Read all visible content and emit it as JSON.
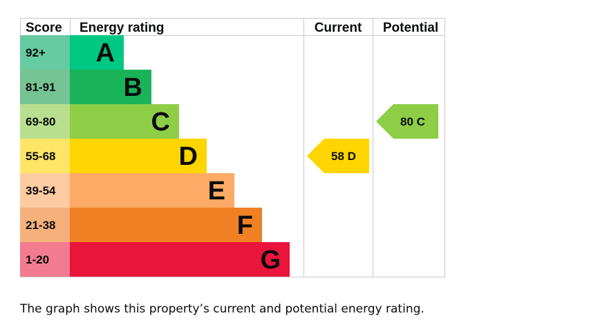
{
  "chart_data": {
    "type": "table",
    "headers": {
      "score": "Score",
      "rating": "Energy rating",
      "current": "Current",
      "potential": "Potential"
    },
    "bands": [
      {
        "letter": "A",
        "score_range": "92+",
        "color": "#00c781",
        "score_color": "#66cba0"
      },
      {
        "letter": "B",
        "score_range": "81-91",
        "color": "#19b459",
        "score_color": "#76c393"
      },
      {
        "letter": "C",
        "score_range": "69-80",
        "color": "#8dce46",
        "score_color": "#b8df8f"
      },
      {
        "letter": "D",
        "score_range": "55-68",
        "color": "#ffd500",
        "score_color": "#ffe566"
      },
      {
        "letter": "E",
        "score_range": "39-54",
        "color": "#fcaa65",
        "score_color": "#fdcba1"
      },
      {
        "letter": "F",
        "score_range": "21-38",
        "color": "#ef8023",
        "score_color": "#f5b07b"
      },
      {
        "letter": "G",
        "score_range": "1-20",
        "color": "#e9153b",
        "score_color": "#f27b8f"
      }
    ],
    "current": {
      "value": 58,
      "letter": "D",
      "label": "58 D",
      "color": "#ffd500"
    },
    "potential": {
      "value": 80,
      "letter": "C",
      "label": "80 C",
      "color": "#8dce46"
    }
  },
  "caption": "The graph shows this property’s current and potential energy rating."
}
